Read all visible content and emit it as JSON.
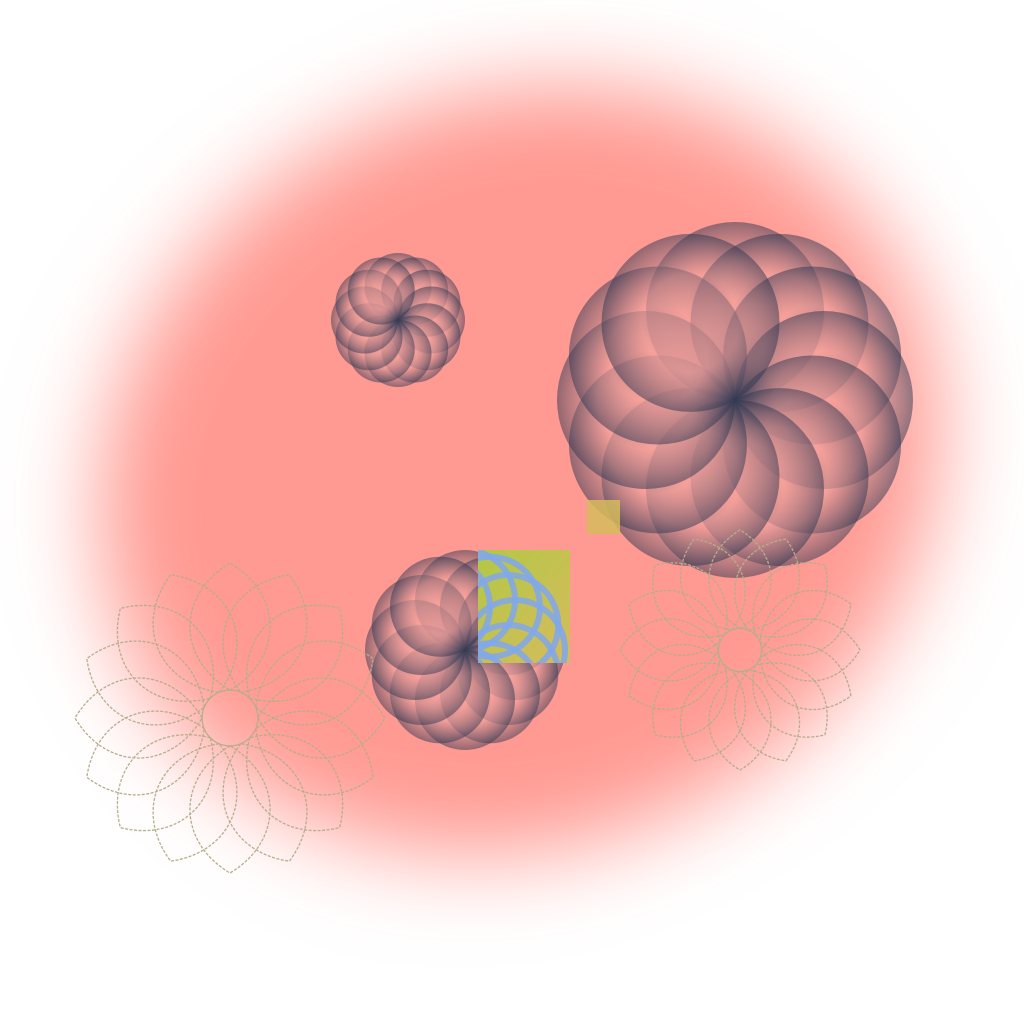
{
  "palette": {
    "background": "#ffffff",
    "glow": "#ff9a92",
    "petal_dark": "#2e3752",
    "petal_light": "#f3a29d",
    "outline": "#b6ad8e",
    "patch_yellow": "#d6bb5c",
    "patch_green": "#b2c845",
    "patch_blue": "#7fa7ee"
  },
  "rosettes": [
    {
      "name": "rosette-small-top",
      "petals": 12,
      "style": "filled"
    },
    {
      "name": "rosette-large-right",
      "petals": 12,
      "style": "filled"
    },
    {
      "name": "rosette-medium-center",
      "petals": 12,
      "style": "filled"
    },
    {
      "name": "rosette-outline-left",
      "petals": 16,
      "style": "outline"
    },
    {
      "name": "rosette-outline-right",
      "petals": 16,
      "style": "outline"
    }
  ]
}
